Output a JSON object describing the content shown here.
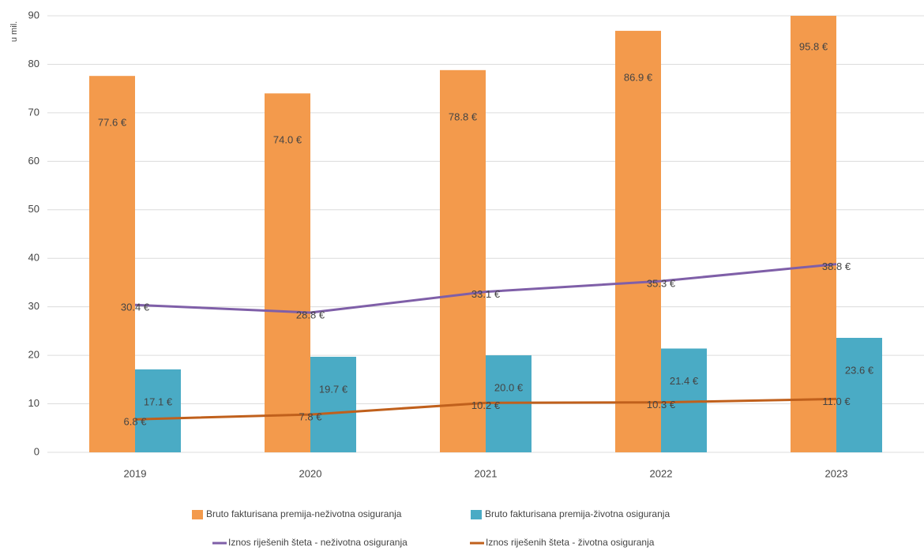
{
  "chart_data": {
    "type": "bar",
    "y_label": "u mil.",
    "categories": [
      "2019",
      "2020",
      "2021",
      "2022",
      "2023"
    ],
    "ylim": [
      0,
      90
    ],
    "yticks": [
      0,
      10,
      20,
      30,
      40,
      50,
      60,
      70,
      80,
      90
    ],
    "grid": true,
    "series": [
      {
        "name": "Bruto fakturisana premija-neživotna osiguranja",
        "type": "bar",
        "color": "#f39a4c",
        "values": [
          77.6,
          74.0,
          78.8,
          86.9,
          95.8
        ],
        "value_labels": [
          "77.6 €",
          "74.0 €",
          "78.8 €",
          "86.9 €",
          "95.8 €"
        ]
      },
      {
        "name": "Bruto fakturisana premija-životna osiguranja",
        "type": "bar",
        "color": "#4aabc5",
        "values": [
          17.1,
          19.7,
          20.0,
          21.4,
          23.6
        ],
        "value_labels": [
          "17.1 €",
          "19.7 €",
          "20.0 €",
          "21.4 €",
          "23.6 €"
        ]
      },
      {
        "name": "Iznos riješenih šteta - neživotna osiguranja",
        "type": "line",
        "color": "#7f5fa8",
        "values": [
          30.4,
          28.8,
          33.1,
          35.3,
          38.8
        ],
        "value_labels": [
          "30.4 €",
          "28.8 €",
          "33.1 €",
          "35.3 €",
          "38.8 €"
        ]
      },
      {
        "name": "Iznos riješenih šteta - životna osiguranja",
        "type": "line",
        "color": "#c0601c",
        "values": [
          6.8,
          7.8,
          10.2,
          10.3,
          11.0
        ],
        "value_labels": [
          "6.8 €",
          "7.8 €",
          "10.2 €",
          "10.3 €",
          "11.0 €"
        ]
      }
    ]
  }
}
